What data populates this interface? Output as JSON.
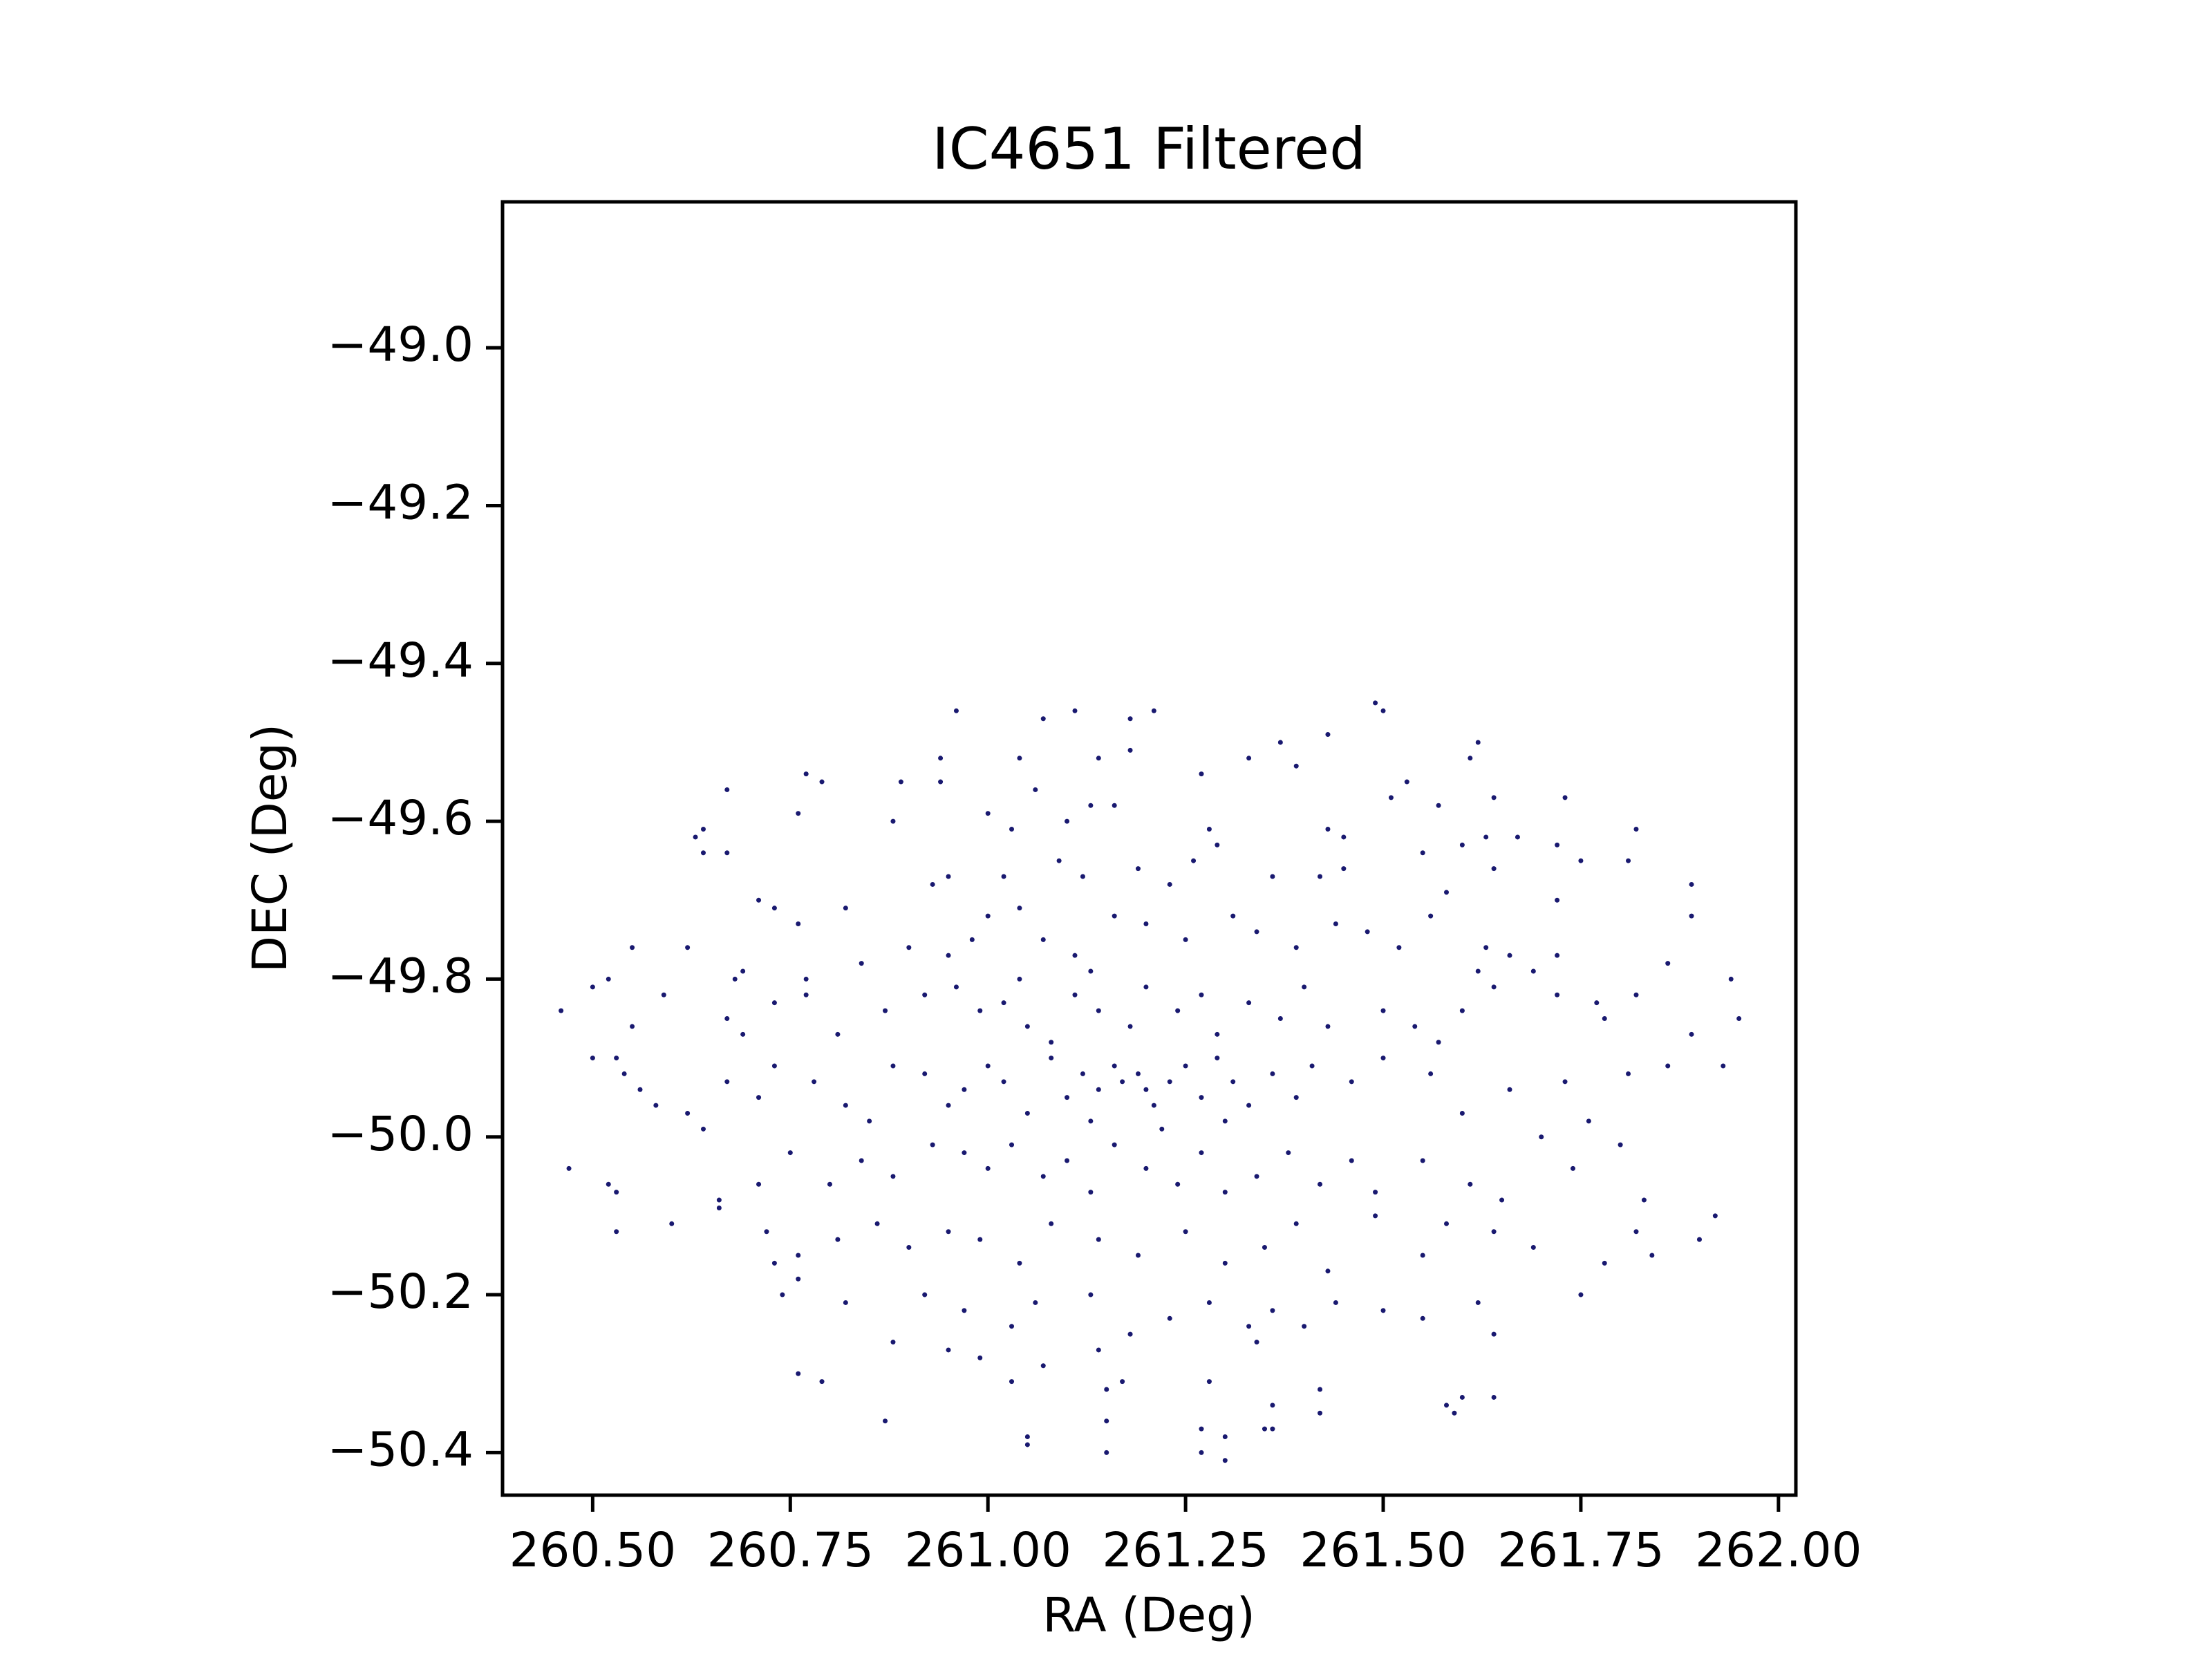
{
  "chart_data": {
    "type": "scatter",
    "title": "IC4651 Filtered",
    "x_label": "RA (Deg)",
    "y_label": "DEC (Deg)",
    "color": "#191970",
    "xlim": [
      260.386,
      262.022
    ],
    "ylim": [
      -50.454,
      -48.815
    ],
    "xticks": [
      {
        "value": 260.5,
        "label": "260.50"
      },
      {
        "value": 260.75,
        "label": "260.75"
      },
      {
        "value": 261,
        "label": "261.00"
      },
      {
        "value": 261.25,
        "label": "261.25"
      },
      {
        "value": 261.5,
        "label": "261.50"
      },
      {
        "value": 261.75,
        "label": "261.75"
      },
      {
        "value": 262,
        "label": "262.00"
      }
    ],
    "yticks": [
      {
        "value": -49,
        "label": "−49.0"
      },
      {
        "value": -49.2,
        "label": "−49.2"
      },
      {
        "value": -49.4,
        "label": "−49.4"
      },
      {
        "value": -49.6,
        "label": "−49.6"
      },
      {
        "value": -49.8,
        "label": "−49.8"
      },
      {
        "value": -50,
        "label": "−50.0"
      },
      {
        "value": -50.2,
        "label": "−50.2"
      },
      {
        "value": -50.4,
        "label": "−50.4"
      }
    ],
    "x": [
      260.96,
      261.07,
      261.11,
      261.18,
      261.21,
      261.49,
      261.5,
      260.94,
      261.27,
      261.04,
      261.14,
      261.18,
      261.33,
      261.37,
      261.43,
      261.62,
      261.61,
      261.53,
      261.39,
      260.77,
      260.79,
      260.67,
      260.89,
      260.94,
      261.06,
      261.13,
      261.51,
      261.57,
      261.64,
      261.73,
      260.63,
      260.64,
      260.64,
      260.67,
      260.76,
      260.88,
      261.0,
      261.03,
      261.1,
      261.16,
      261.28,
      261.29,
      261.43,
      261.45,
      261.55,
      261.6,
      261.63,
      261.67,
      261.72,
      261.75,
      261.82,
      261.81,
      260.93,
      260.95,
      261.09,
      261.12,
      261.19,
      261.23,
      261.36,
      261.42,
      261.45,
      261.26,
      261.02,
      261.89,
      261.64,
      261.58,
      260.71,
      260.73,
      260.76,
      260.82,
      260.62,
      260.55,
      260.68,
      260.69,
      260.77,
      260.9,
      260.95,
      260.98,
      261.0,
      261.04,
      261.07,
      261.11,
      261.16,
      261.2,
      261.25,
      261.31,
      261.34,
      261.39,
      261.44,
      261.48,
      261.52,
      261.56,
      261.63,
      261.66,
      261.72,
      261.72,
      261.86,
      261.89,
      261.94,
      261.69,
      261.62,
      261.13,
      261.04,
      260.84,
      260.46,
      260.5,
      260.52,
      260.55,
      260.59,
      260.67,
      260.69,
      260.73,
      260.77,
      260.81,
      260.87,
      260.92,
      260.96,
      260.99,
      261.02,
      261.05,
      261.08,
      261.11,
      261.14,
      261.18,
      261.2,
      261.24,
      261.27,
      261.29,
      261.33,
      261.37,
      261.4,
      261.43,
      261.5,
      261.54,
      261.6,
      261.64,
      261.72,
      261.77,
      261.82,
      261.89,
      261.95,
      261.57,
      261.78,
      260.5,
      260.53,
      260.54,
      260.56,
      260.58,
      260.62,
      260.67,
      260.71,
      260.73,
      260.78,
      260.82,
      260.85,
      260.88,
      260.92,
      260.95,
      260.97,
      261.0,
      261.02,
      261.05,
      261.08,
      261.1,
      261.12,
      261.14,
      261.16,
      261.17,
      261.19,
      261.2,
      261.21,
      261.23,
      261.25,
      261.27,
      261.29,
      261.31,
      261.33,
      261.36,
      261.39,
      261.41,
      261.46,
      261.5,
      261.56,
      261.6,
      261.66,
      261.73,
      261.76,
      261.81,
      261.86,
      261.93,
      261.13,
      261.22,
      261.3,
      260.47,
      260.53,
      260.64,
      260.66,
      260.71,
      260.75,
      260.8,
      260.84,
      260.88,
      260.93,
      260.97,
      261.0,
      261.03,
      261.07,
      261.1,
      261.13,
      261.16,
      261.2,
      261.24,
      261.27,
      261.3,
      261.34,
      261.38,
      261.42,
      261.46,
      261.49,
      261.55,
      261.61,
      261.65,
      261.7,
      261.74,
      261.83,
      261.8,
      260.52,
      260.53,
      260.6,
      260.66,
      260.72,
      260.76,
      260.81,
      260.86,
      260.9,
      260.95,
      260.99,
      261.04,
      261.08,
      261.14,
      261.19,
      261.25,
      261.3,
      261.35,
      261.39,
      261.43,
      261.49,
      261.55,
      261.58,
      261.64,
      261.69,
      261.78,
      261.82,
      261.84,
      261.9,
      261.92,
      260.73,
      260.76,
      260.74,
      260.82,
      260.92,
      260.97,
      261.03,
      261.06,
      261.13,
      261.18,
      261.23,
      261.28,
      261.33,
      261.36,
      261.4,
      261.44,
      261.5,
      261.55,
      261.62,
      261.64,
      261.75,
      260.88,
      260.95,
      260.99,
      261.14,
      261.34,
      260.76,
      260.79,
      261.03,
      261.07,
      261.15,
      261.17,
      261.28,
      261.36,
      261.42,
      261.6,
      261.58,
      261.64,
      260.87,
      261.05,
      261.05,
      261.15,
      261.15,
      261.27,
      261.27,
      261.3,
      261.3,
      261.35,
      261.36,
      261.42,
      261.59
    ],
    "values": [
      -49.46,
      -49.47,
      -49.46,
      -49.47,
      -49.46,
      -49.45,
      -49.46,
      -49.52,
      -49.54,
      -49.52,
      -49.52,
      -49.51,
      -49.52,
      -49.5,
      -49.49,
      -49.5,
      -49.52,
      -49.55,
      -49.53,
      -49.54,
      -49.55,
      -49.56,
      -49.55,
      -49.55,
      -49.56,
      -49.58,
      -49.57,
      -49.58,
      -49.57,
      -49.57,
      -49.62,
      -49.61,
      -49.64,
      -49.64,
      -49.59,
      -49.6,
      -49.59,
      -49.61,
      -49.6,
      -49.58,
      -49.61,
      -49.63,
      -49.61,
      -49.62,
      -49.64,
      -49.63,
      -49.62,
      -49.62,
      -49.63,
      -49.65,
      -49.61,
      -49.65,
      -49.68,
      -49.67,
      -49.65,
      -49.67,
      -49.66,
      -49.68,
      -49.67,
      -49.67,
      -49.66,
      -49.65,
      -49.67,
      -49.68,
      -49.66,
      -49.69,
      -49.7,
      -49.71,
      -49.73,
      -49.71,
      -49.76,
      -49.76,
      -49.8,
      -49.79,
      -49.8,
      -49.76,
      -49.77,
      -49.75,
      -49.72,
      -49.71,
      -49.75,
      -49.77,
      -49.72,
      -49.73,
      -49.75,
      -49.72,
      -49.74,
      -49.76,
      -49.73,
      -49.74,
      -49.76,
      -49.72,
      -49.76,
      -49.77,
      -49.7,
      -49.77,
      -49.78,
      -49.72,
      -49.8,
      -49.79,
      -49.79,
      -49.79,
      -49.8,
      -49.78,
      -49.84,
      -49.81,
      -49.8,
      -49.86,
      -49.82,
      -49.85,
      -49.87,
      -49.83,
      -49.82,
      -49.87,
      -49.84,
      -49.82,
      -49.81,
      -49.84,
      -49.83,
      -49.86,
      -49.88,
      -49.82,
      -49.84,
      -49.86,
      -49.81,
      -49.84,
      -49.82,
      -49.87,
      -49.83,
      -49.85,
      -49.81,
      -49.86,
      -49.84,
      -49.86,
      -49.84,
      -49.81,
      -49.82,
      -49.83,
      -49.82,
      -49.87,
      -49.85,
      -49.88,
      -49.85,
      -49.9,
      -49.9,
      -49.92,
      -49.94,
      -49.96,
      -49.97,
      -49.93,
      -49.95,
      -49.91,
      -49.93,
      -49.96,
      -49.98,
      -49.91,
      -49.92,
      -49.96,
      -49.94,
      -49.91,
      -49.93,
      -49.97,
      -49.9,
      -49.95,
      -49.92,
      -49.94,
      -49.91,
      -49.93,
      -49.92,
      -49.94,
      -49.96,
      -49.93,
      -49.91,
      -49.95,
      -49.9,
      -49.93,
      -49.96,
      -49.92,
      -49.95,
      -49.91,
      -49.93,
      -49.9,
      -49.92,
      -49.97,
      -49.94,
      -49.93,
      -49.98,
      -49.92,
      -49.91,
      -49.91,
      -49.98,
      -49.99,
      -49.98,
      -50.04,
      -50.07,
      -49.99,
      -50.08,
      -50.06,
      -50.02,
      -50.06,
      -50.03,
      -50.05,
      -50.01,
      -50.02,
      -50.04,
      -50.01,
      -50.05,
      -50.03,
      -50.07,
      -50.01,
      -50.04,
      -50.06,
      -50.02,
      -50.07,
      -50.05,
      -50.02,
      -50.06,
      -50.03,
      -50.07,
      -50.03,
      -50.06,
      -50.08,
      -50.0,
      -50.04,
      -50.08,
      -50.01,
      -50.06,
      -50.12,
      -50.11,
      -50.09,
      -50.12,
      -50.15,
      -50.13,
      -50.11,
      -50.14,
      -50.12,
      -50.13,
      -50.16,
      -50.11,
      -50.13,
      -50.15,
      -50.12,
      -50.16,
      -50.14,
      -50.11,
      -50.17,
      -50.1,
      -50.15,
      -50.11,
      -50.12,
      -50.14,
      -50.16,
      -50.12,
      -50.15,
      -50.13,
      -50.1,
      -50.16,
      -50.18,
      -50.2,
      -50.21,
      -50.2,
      -50.22,
      -50.24,
      -50.21,
      -50.2,
      -50.25,
      -50.23,
      -50.21,
      -50.24,
      -50.22,
      -50.24,
      -50.21,
      -50.22,
      -50.23,
      -50.21,
      -50.25,
      -50.2,
      -50.26,
      -50.27,
      -50.28,
      -50.27,
      -50.26,
      -50.3,
      -50.31,
      -50.31,
      -50.29,
      -50.32,
      -50.31,
      -50.31,
      -50.34,
      -50.32,
      -50.33,
      -50.34,
      -50.33,
      -50.36,
      -50.38,
      -50.39,
      -50.36,
      -50.4,
      -50.37,
      -50.4,
      -50.38,
      -50.41,
      -50.37,
      -50.37,
      -50.35,
      -50.35
    ]
  }
}
